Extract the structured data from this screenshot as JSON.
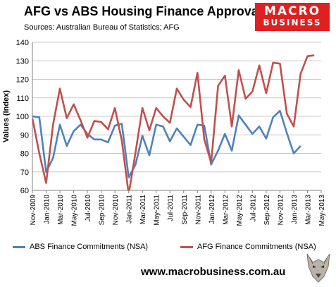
{
  "header": {
    "title": "AFG vs ABS Housing Finance Approvals",
    "subtitle": "Sources: Australian Bureau of Statistics; AFG"
  },
  "logo": {
    "line1": "MACRO",
    "line2": "BUSINESS",
    "line3": ""
  },
  "footer": {
    "url": "www.macrobusiness.com.au",
    "mascot": "wolf-icon"
  },
  "colors": {
    "abs": "#4f81bd",
    "afg": "#c0504d",
    "grid": "#c8c8c8",
    "logo_bg": "#e02020"
  },
  "chart_data": {
    "type": "line",
    "ylabel": "Values (Index)",
    "xlabel": "",
    "ylim": [
      60,
      140
    ],
    "yticks": [
      60,
      70,
      80,
      90,
      100,
      110,
      120,
      130,
      140
    ],
    "grid": "horizontal",
    "legend": "bottom",
    "x_tick_labels": [
      "Nov-2009",
      "Jan-2010",
      "Mar-2010",
      "May-2010",
      "Jul-2010",
      "Sep-2010",
      "Nov-2010",
      "Jan-2011",
      "Mar-2011",
      "May-2011",
      "Jul-2011",
      "Sep-2011",
      "Nov-2011",
      "Jan-2012",
      "Mar-2012",
      "May-2012",
      "Jul-2012",
      "Sep-2012",
      "Nov-2012",
      "Jan-2013",
      "Mar-2013",
      "May-2013"
    ],
    "x": [
      "Nov-2009",
      "Dec-2009",
      "Jan-2010",
      "Feb-2010",
      "Mar-2010",
      "Apr-2010",
      "May-2010",
      "Jun-2010",
      "Jul-2010",
      "Aug-2010",
      "Sep-2010",
      "Oct-2010",
      "Nov-2010",
      "Dec-2010",
      "Jan-2011",
      "Feb-2011",
      "Mar-2011",
      "Apr-2011",
      "May-2011",
      "Jun-2011",
      "Jul-2011",
      "Aug-2011",
      "Sep-2011",
      "Oct-2011",
      "Nov-2011",
      "Dec-2011",
      "Jan-2012",
      "Feb-2012",
      "Mar-2012",
      "Apr-2012",
      "May-2012",
      "Jun-2012",
      "Jul-2012",
      "Aug-2012",
      "Sep-2012",
      "Oct-2012",
      "Nov-2012",
      "Dec-2012",
      "Jan-2013",
      "Feb-2013",
      "Mar-2013",
      "Apr-2013",
      "May-2013"
    ],
    "series": [
      {
        "name": "ABS Finance Commitments (NSA)",
        "values": [
          100,
          99.5,
          70,
          77.5,
          95.5,
          84,
          92,
          95.5,
          90.5,
          87.5,
          87.5,
          86,
          95,
          96,
          67,
          74,
          89.5,
          79,
          95.5,
          94.5,
          86.5,
          93.5,
          89,
          84.5,
          95.5,
          95,
          74,
          81.5,
          90.5,
          81.5,
          100.5,
          95.5,
          90.5,
          94.5,
          88,
          99.5,
          103,
          91,
          80,
          84,
          null,
          null,
          null
        ]
      },
      {
        "name": "AFG Finance Commitments (NSA)",
        "values": [
          99,
          80,
          64,
          95.5,
          115,
          99,
          106.5,
          98,
          88.5,
          97.5,
          97,
          93,
          104.5,
          87,
          58,
          80.5,
          104.5,
          92.5,
          104.5,
          100,
          96.5,
          115,
          109,
          105,
          123.5,
          87.5,
          75,
          116.5,
          122,
          94.5,
          125,
          109.5,
          113.5,
          127.5,
          112.5,
          129,
          128.5,
          101.5,
          94.5,
          123,
          132.5,
          133,
          null
        ]
      }
    ]
  }
}
